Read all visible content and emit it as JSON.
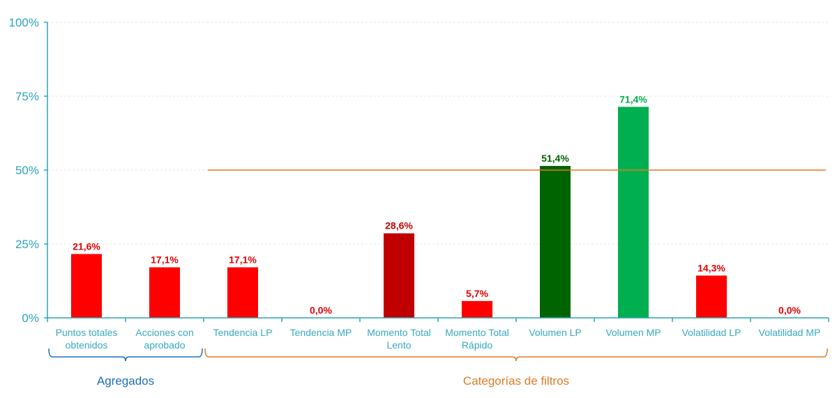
{
  "chart_data": {
    "type": "bar",
    "ylim": [
      0,
      100
    ],
    "yticks": [
      "0%",
      "25%",
      "50%",
      "75%",
      "100%"
    ],
    "yticks_values": [
      0,
      25,
      50,
      75,
      100
    ],
    "grid": true,
    "categories": [
      [
        "Puntos totales",
        "obtenidos"
      ],
      [
        "Acciones con",
        "aprobado"
      ],
      [
        "Tendencia LP"
      ],
      [
        "Tendencia MP"
      ],
      [
        "Momento Total",
        "Lento"
      ],
      [
        "Momento Total",
        "Rápido"
      ],
      [
        "Volumen LP"
      ],
      [
        "Volumen MP"
      ],
      [
        "Volatilidad LP"
      ],
      [
        "Volatilidad MP"
      ]
    ],
    "values": [
      21.6,
      17.1,
      17.1,
      0.0,
      28.6,
      5.7,
      51.4,
      71.4,
      14.3,
      0.0
    ],
    "value_labels": [
      "21,6%",
      "17,1%",
      "17,1%",
      "0,0%",
      "28,6%",
      "5,7%",
      "51,4%",
      "71,4%",
      "14,3%",
      "0,0%"
    ],
    "bar_colors": [
      "#ff0000",
      "#ff0000",
      "#ff0000",
      "#ff0000",
      "#c00000",
      "#ff0000",
      "#006400",
      "#00b050",
      "#ff0000",
      "#ff0000"
    ],
    "label_colors": [
      "#e00000",
      "#e00000",
      "#e00000",
      "#e00000",
      "#c00000",
      "#e00000",
      "#006400",
      "#00b050",
      "#e00000",
      "#e00000"
    ],
    "reference_line": {
      "value": 50,
      "color": "#e07a22",
      "from_category": 2,
      "to_category": 9
    },
    "groups": [
      {
        "label": "Agregados",
        "start": 0,
        "end": 1,
        "color": "#1f6fb4"
      },
      {
        "label": "Categorías de filtros",
        "start": 2,
        "end": 9,
        "color": "#e07a22"
      }
    ],
    "axis_color": "#2aa3b8"
  }
}
